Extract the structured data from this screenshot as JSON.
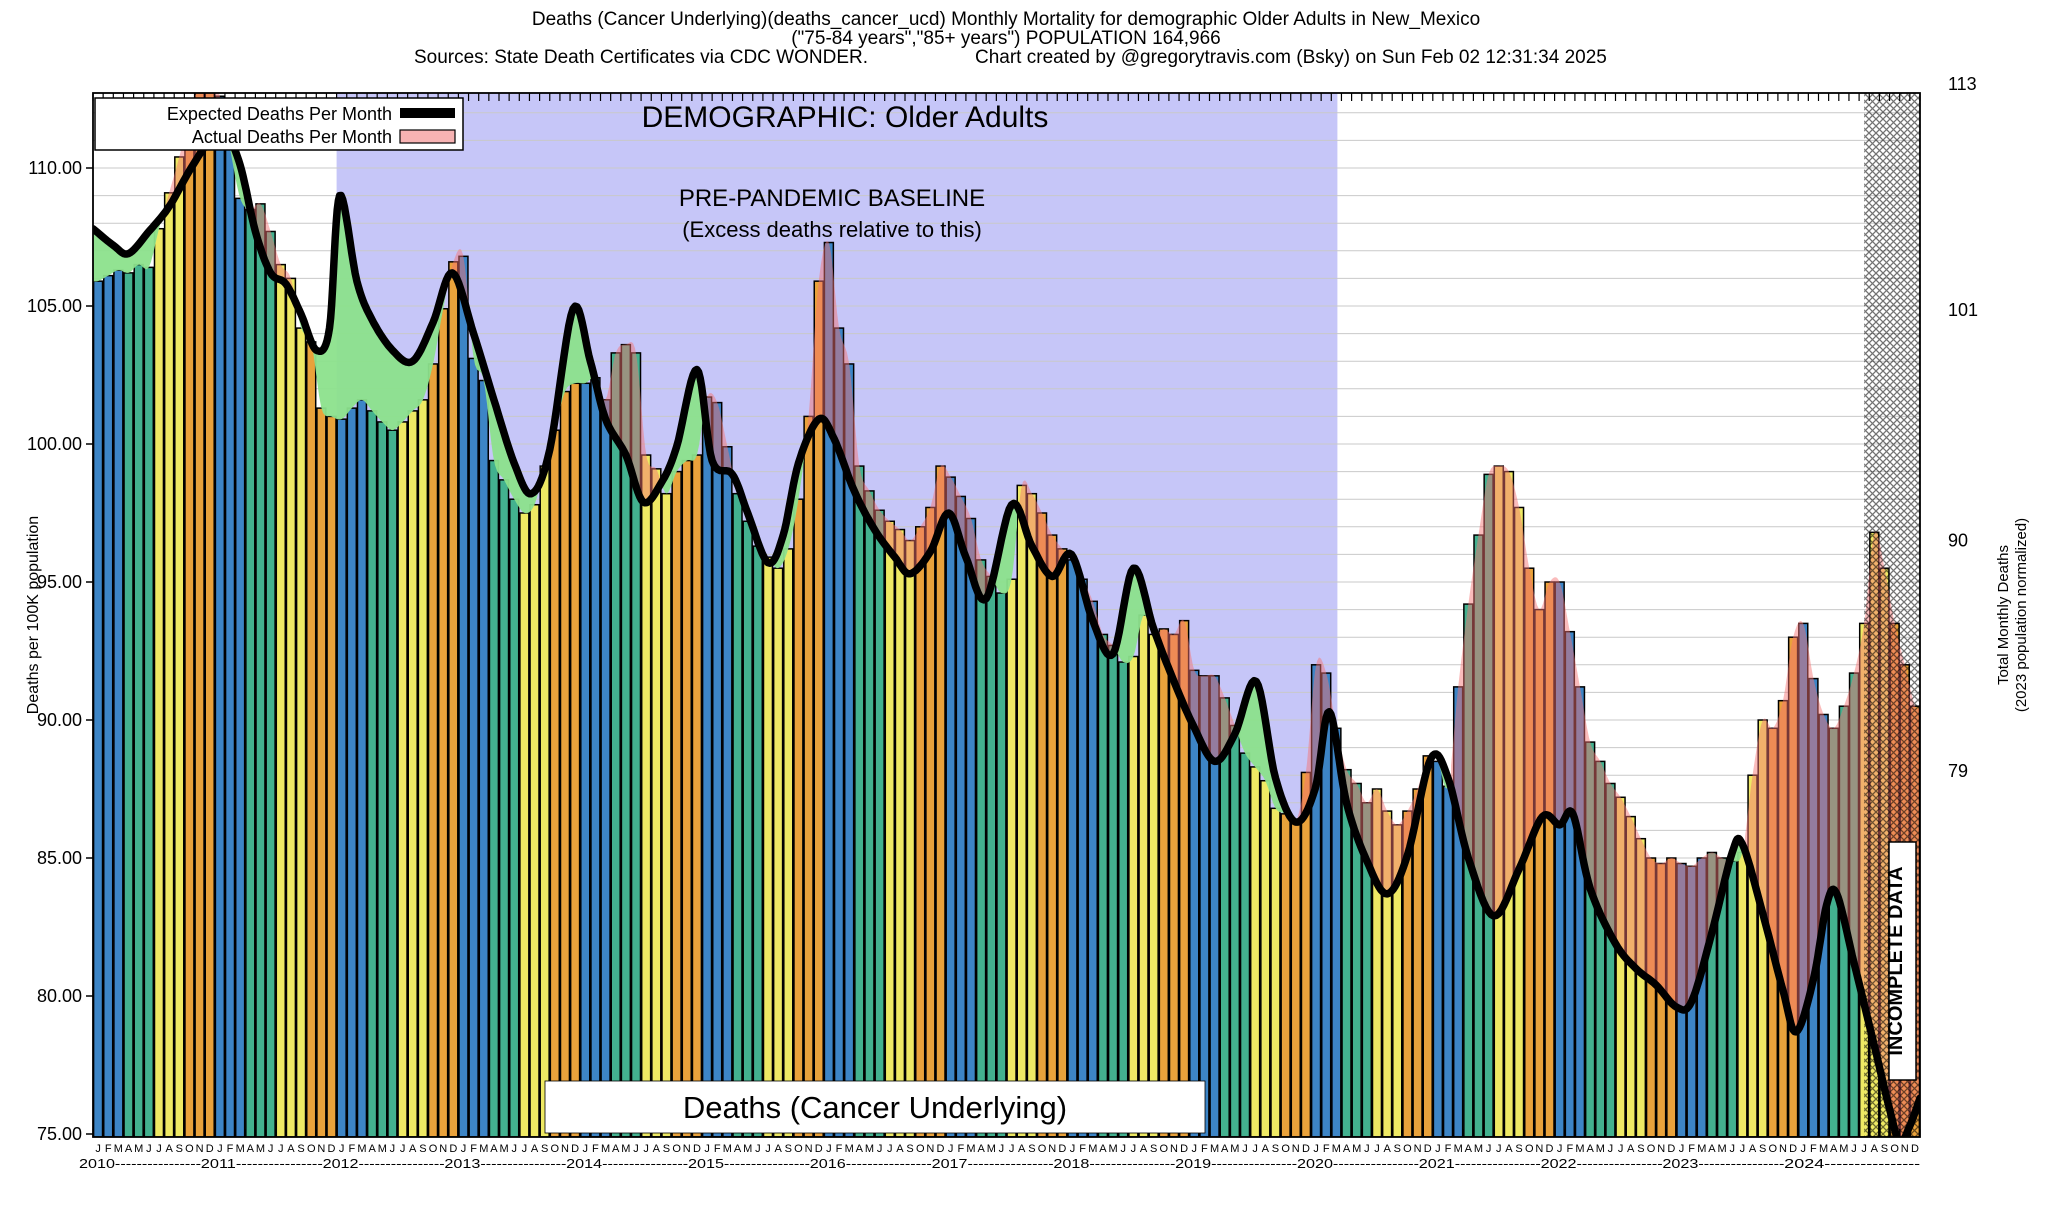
{
  "header": {
    "title_line1": "Deaths (Cancer Underlying)(deaths_cancer_ucd) Monthly Mortality for demographic Older Adults in New_Mexico",
    "title_line2": "(\"75-84 years\",\"85+ years\") POPULATION 164,966",
    "title_line3_left": "Sources: State Death Certificates via CDC WONDER.",
    "title_line3_right": "Chart created by @gregorytravis.com (Bsky) on Sun Feb 02 12:31:34 2025"
  },
  "legend": {
    "expected_label": "Expected Deaths Per Month",
    "actual_label": "Actual Deaths Per Month"
  },
  "annotations": {
    "demographic": "DEMOGRAPHIC: Older Adults",
    "baseline_line1": "PRE-PANDEMIC BASELINE",
    "baseline_line2": "(Excess deaths relative to this)",
    "bottom_label": "Deaths (Cancer Underlying)",
    "incomplete_label": "INCOMPLETE DATA"
  },
  "chart_data": {
    "type": "bar",
    "title": "Deaths (Cancer Underlying) Monthly Mortality, Older Adults, New Mexico",
    "ylabel": "Deaths per 100K population",
    "y2label_line1": "Total Monthly Deaths",
    "y2label_line2": "(2023 population normalized)",
    "y_ticks": [
      75,
      80,
      85,
      90,
      95,
      100,
      105,
      110
    ],
    "y_tick_format": [
      "75.00",
      "80.00",
      "85.00",
      "90.00",
      "95.00",
      "100.00",
      "105.00",
      "110.00"
    ],
    "ylim": [
      74.9,
      112.7
    ],
    "y2_ticks": [
      113,
      101,
      90,
      79
    ],
    "month_letters": [
      "J",
      "F",
      "M",
      "A",
      "M",
      "J",
      "J",
      "A",
      "S",
      "O",
      "N",
      "D"
    ],
    "years": [
      2010,
      2011,
      2012,
      2013,
      2014,
      2015,
      2016,
      2017,
      2018,
      2019,
      2020,
      2021,
      2022,
      2023,
      2024
    ],
    "season_colors": [
      "#3d85c6",
      "#43b18f",
      "#eee964",
      "#e9a23b"
    ],
    "baseline_region": {
      "start_month": 24,
      "end_month": 122.6,
      "color": "#c6c6f8"
    },
    "incomplete_region": {
      "start_month": 174.5,
      "end_month": 180
    },
    "deficit_color": "#8ce28c",
    "excess_color": "rgba(244,116,116,0.48)",
    "expected_line_color": "#000000",
    "actual_monthly": {
      "2010": [
        105.9,
        106.1,
        106.3,
        106.2,
        106.5,
        106.4,
        107.8,
        109.1,
        110.4,
        111.9,
        113.1,
        113.3
      ],
      "2011": [
        112.6,
        110.7,
        108.9,
        108.5,
        108.7,
        107.7,
        106.5,
        106.0,
        104.2,
        103.7,
        101.3,
        101.0
      ],
      "2012": [
        100.9,
        101.3,
        101.6,
        101.2,
        100.8,
        100.5,
        100.8,
        101.2,
        101.6,
        102.9,
        104.9,
        106.6
      ],
      "2013": [
        106.8,
        103.1,
        102.3,
        99.4,
        98.7,
        98.0,
        97.5,
        97.8,
        99.2,
        100.5,
        101.9,
        102.2
      ],
      "2014": [
        102.2,
        102.4,
        101.6,
        103.3,
        103.6,
        103.3,
        99.6,
        99.1,
        98.2,
        99.0,
        99.4,
        99.6
      ],
      "2015": [
        101.7,
        101.5,
        99.9,
        98.2,
        97.2,
        96.3,
        95.9,
        95.5,
        96.2,
        98.0,
        101.0,
        105.9
      ],
      "2016": [
        107.3,
        104.2,
        102.9,
        99.2,
        98.3,
        97.6,
        97.2,
        96.9,
        96.5,
        97.0,
        97.7,
        99.2
      ],
      "2017": [
        98.8,
        98.1,
        97.3,
        95.8,
        95.2,
        94.6,
        95.1,
        98.5,
        98.2,
        97.5,
        96.7,
        96.2
      ],
      "2018": [
        95.8,
        95.1,
        94.3,
        93.1,
        92.7,
        92.1,
        92.3,
        93.8,
        93.1,
        93.3,
        93.1,
        93.6
      ],
      "2019": [
        91.8,
        91.6,
        91.6,
        90.8,
        89.8,
        88.8,
        88.3,
        87.8,
        86.8,
        86.6,
        86.3,
        88.1
      ],
      "2020": [
        92.0,
        91.7,
        89.7,
        88.2,
        87.7,
        87.0,
        87.5,
        86.7,
        86.2,
        86.7,
        87.5,
        88.7
      ],
      "2021": [
        88.5,
        87.6,
        91.2,
        94.2,
        96.7,
        98.9,
        99.2,
        99.0,
        97.7,
        95.5,
        94.0,
        95.0
      ],
      "2022": [
        95.0,
        93.2,
        91.2,
        89.2,
        88.5,
        87.7,
        87.2,
        86.5,
        85.7,
        85.0,
        84.8,
        85.0
      ],
      "2023": [
        84.8,
        84.7,
        85.0,
        85.2,
        85.0,
        84.9,
        85.2,
        88.0,
        90.0,
        89.7,
        90.7,
        93.0
      ],
      "2024": [
        93.5,
        91.5,
        90.2,
        89.7,
        90.5,
        91.7,
        93.5,
        96.8,
        95.5,
        93.5,
        92.0,
        90.5
      ]
    },
    "expected_points": [
      [
        0,
        107.8
      ],
      [
        2,
        107.2
      ],
      [
        3.5,
        106.9
      ],
      [
        5.5,
        107.7
      ],
      [
        7.5,
        108.6
      ],
      [
        9.5,
        109.9
      ],
      [
        11.5,
        111.0
      ],
      [
        13,
        111.3
      ],
      [
        14.5,
        110.1
      ],
      [
        16,
        107.7
      ],
      [
        17.5,
        106.2
      ],
      [
        19,
        105.8
      ],
      [
        20.5,
        104.7
      ],
      [
        22,
        103.4
      ],
      [
        23.3,
        104.2
      ],
      [
        24.3,
        109.0
      ],
      [
        26,
        105.9
      ],
      [
        27.5,
        104.5
      ],
      [
        29.5,
        103.4
      ],
      [
        31.5,
        103.0
      ],
      [
        33.5,
        104.4
      ],
      [
        35.4,
        106.2
      ],
      [
        37.5,
        104.0
      ],
      [
        39.5,
        101.6
      ],
      [
        41.5,
        99.3
      ],
      [
        43.2,
        98.2
      ],
      [
        45,
        99.8
      ],
      [
        47.3,
        104.9
      ],
      [
        49,
        103.0
      ],
      [
        50.5,
        100.9
      ],
      [
        52.5,
        99.6
      ],
      [
        54.2,
        97.9
      ],
      [
        56,
        98.6
      ],
      [
        57.5,
        99.9
      ],
      [
        59.5,
        102.7
      ],
      [
        61,
        99.4
      ],
      [
        63,
        98.9
      ],
      [
        64.5,
        97.5
      ],
      [
        66.5,
        95.7
      ],
      [
        68,
        96.7
      ],
      [
        69.5,
        99.3
      ],
      [
        71.5,
        100.9
      ],
      [
        73,
        100.2
      ],
      [
        75,
        98.3
      ],
      [
        77,
        96.9
      ],
      [
        79,
        95.9
      ],
      [
        80.5,
        95.3
      ],
      [
        82.5,
        96.1
      ],
      [
        84.3,
        97.5
      ],
      [
        86,
        95.9
      ],
      [
        88,
        94.4
      ],
      [
        90.5,
        97.8
      ],
      [
        92.5,
        96.3
      ],
      [
        94.5,
        95.2
      ],
      [
        96.4,
        96.0
      ],
      [
        98.5,
        93.6
      ],
      [
        100.5,
        92.4
      ],
      [
        102.5,
        95.5
      ],
      [
        104.5,
        93.3
      ],
      [
        106.5,
        91.4
      ],
      [
        108.4,
        89.8
      ],
      [
        110.5,
        88.5
      ],
      [
        112.5,
        89.5
      ],
      [
        114.6,
        91.4
      ],
      [
        116.5,
        87.9
      ],
      [
        118.5,
        86.3
      ],
      [
        120.4,
        87.5
      ],
      [
        121.8,
        90.3
      ],
      [
        123.5,
        87.0
      ],
      [
        125.5,
        84.9
      ],
      [
        127.5,
        83.7
      ],
      [
        129.5,
        85.1
      ],
      [
        131.8,
        88.6
      ],
      [
        133.5,
        87.9
      ],
      [
        135.5,
        85.0
      ],
      [
        138,
        82.9
      ],
      [
        140.5,
        84.6
      ],
      [
        142.8,
        86.5
      ],
      [
        144.5,
        86.2
      ],
      [
        145.8,
        86.6
      ],
      [
        147.5,
        83.9
      ],
      [
        150,
        81.9
      ],
      [
        152,
        81.0
      ],
      [
        154,
        80.4
      ],
      [
        156,
        79.6
      ],
      [
        157.5,
        79.8
      ],
      [
        159.5,
        82.3
      ],
      [
        161.5,
        85.2
      ],
      [
        162.5,
        85.5
      ],
      [
        164.5,
        83.0
      ],
      [
        166.5,
        80.2
      ],
      [
        167.8,
        78.7
      ],
      [
        169.5,
        80.6
      ],
      [
        170.8,
        83.3
      ],
      [
        171.8,
        83.7
      ],
      [
        173.5,
        81.2
      ],
      [
        175.5,
        78.2
      ],
      [
        177,
        75.9
      ],
      [
        178,
        74.7
      ],
      [
        179,
        75.3
      ],
      [
        180,
        76.3
      ]
    ],
    "legend_position": "top-left",
    "grid": true
  }
}
